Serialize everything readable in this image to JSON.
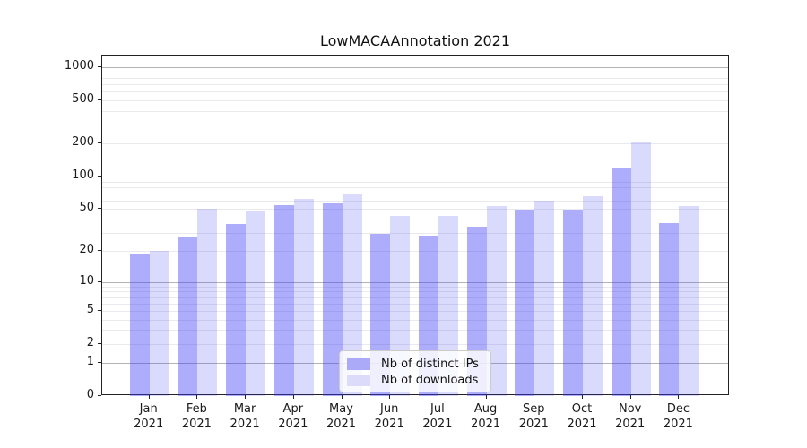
{
  "chart_data": {
    "type": "bar",
    "title": "LowMACAAnnotation 2021",
    "categories": [
      "Jan 2021",
      "Feb 2021",
      "Mar 2021",
      "Apr 2021",
      "May 2021",
      "Jun 2021",
      "Jul 2021",
      "Aug 2021",
      "Sep 2021",
      "Oct 2021",
      "Nov 2021",
      "Dec 2021"
    ],
    "series": [
      {
        "name": "Nb of distinct IPs",
        "values": [
          19,
          27,
          36,
          54,
          56,
          29,
          28,
          34,
          49,
          49,
          120,
          37
        ],
        "fill": "rgba(60,60,245,0.42)",
        "color": "#aaaaf8"
      },
      {
        "name": "Nb of downloads",
        "values": [
          20,
          50,
          48,
          62,
          68,
          43,
          43,
          53,
          60,
          66,
          210,
          53
        ],
        "fill": "rgba(60,60,245,0.19)",
        "color": "#dcdcfa"
      }
    ],
    "xlabel": "",
    "ylabel": "",
    "y_ticks": [
      1000,
      500,
      200,
      100,
      50,
      20,
      10,
      5,
      2,
      1,
      0
    ],
    "y_scale": "log1p",
    "ylim": [
      0,
      1285
    ],
    "grid": "horizontal major (decades) and minor (log subdivisions)",
    "legend_position": "lower center"
  }
}
